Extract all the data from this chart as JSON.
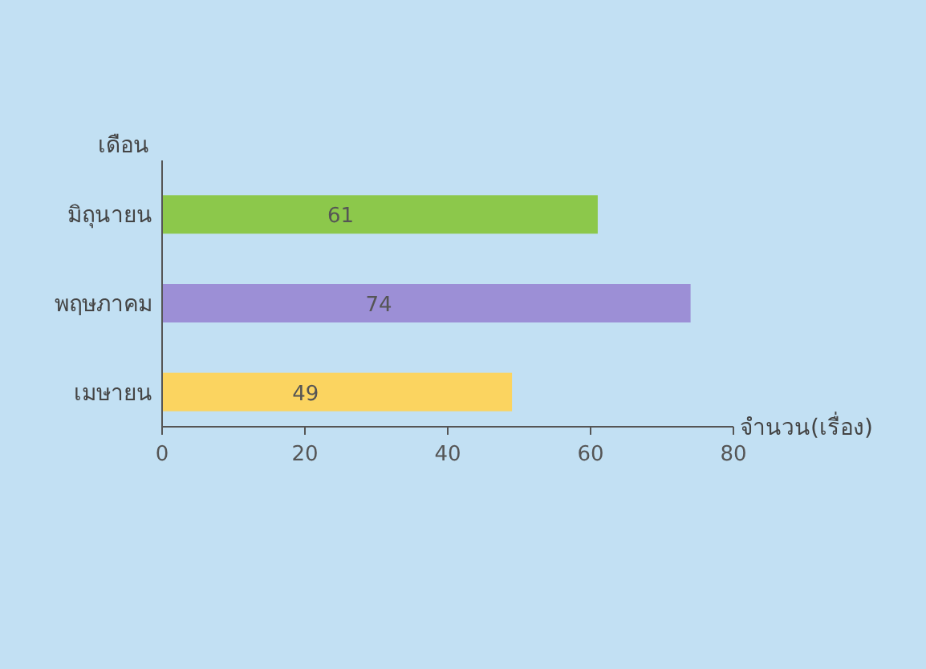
{
  "chart_data": {
    "type": "bar",
    "orientation": "horizontal",
    "ylabel": "เดือน",
    "xlabel": "จำนวน(เรื่อง)",
    "categories": [
      "มิถุนายน",
      "พฤษภาคม",
      "เมษายน"
    ],
    "values": [
      61,
      74,
      49
    ],
    "colors": [
      "#8cc84b",
      "#9c8fd6",
      "#fbd460"
    ],
    "xlim": [
      0,
      80
    ],
    "xticks": [
      0,
      20,
      40,
      60,
      80
    ],
    "data_labels": true,
    "grid": false
  }
}
